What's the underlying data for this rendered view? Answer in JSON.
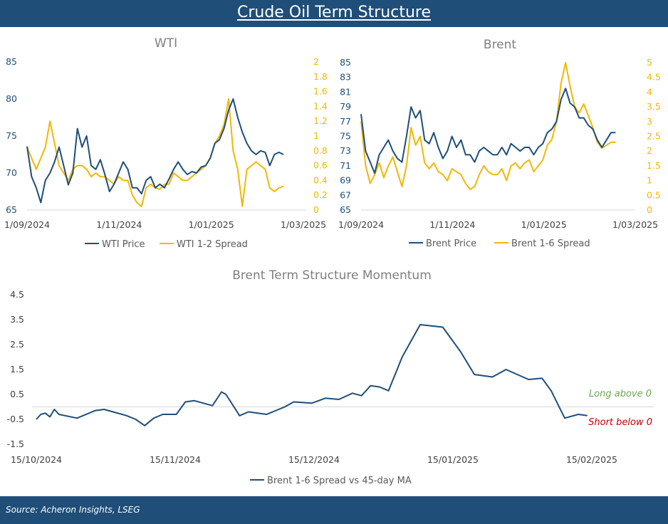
{
  "header": {
    "title": "Crude Oil Term Structure"
  },
  "footer": {
    "source": "Source: Acheron Insights, LSEG"
  },
  "colors": {
    "header_bg": "#1f4e79",
    "price": "#1f4e79",
    "spread": "#f2b705",
    "long": "#6aa84f",
    "short": "#c00000"
  },
  "chart_data": [
    {
      "type": "line",
      "title": "WTI",
      "x_range": [
        "2024-09-01",
        "2025-03-01"
      ],
      "x_ticks": [
        "1/09/2024",
        "1/11/2024",
        "1/01/2025",
        "1/03/2025"
      ],
      "y_left": {
        "range": [
          65,
          85
        ],
        "ticks": [
          "65",
          "70",
          "75",
          "80",
          "85"
        ]
      },
      "y_right": {
        "range": [
          0,
          2
        ],
        "ticks": [
          "0",
          "0.2",
          "0.4",
          "0.6",
          "0.8",
          "1",
          "1.2",
          "1.4",
          "1.6",
          "1.8",
          "2"
        ]
      },
      "series": [
        {
          "name": "WTI Price",
          "axis": "left",
          "x": [
            "2024-09-01",
            "2024-09-04",
            "2024-09-07",
            "2024-09-10",
            "2024-09-13",
            "2024-09-16",
            "2024-09-19",
            "2024-09-22",
            "2024-09-25",
            "2024-09-28",
            "2024-10-01",
            "2024-10-04",
            "2024-10-07",
            "2024-10-10",
            "2024-10-13",
            "2024-10-16",
            "2024-10-19",
            "2024-10-22",
            "2024-10-25",
            "2024-10-28",
            "2024-10-31",
            "2024-11-03",
            "2024-11-06",
            "2024-11-09",
            "2024-11-12",
            "2024-11-15",
            "2024-11-18",
            "2024-11-21",
            "2024-11-24",
            "2024-11-27",
            "2024-11-30",
            "2024-12-03",
            "2024-12-06",
            "2024-12-09",
            "2024-12-12",
            "2024-12-15",
            "2024-12-18",
            "2024-12-21",
            "2024-12-24",
            "2024-12-27",
            "2024-12-30",
            "2025-01-02",
            "2025-01-05",
            "2025-01-08",
            "2025-01-11",
            "2025-01-14",
            "2025-01-17",
            "2025-01-20",
            "2025-01-23",
            "2025-01-26",
            "2025-01-29",
            "2025-02-01",
            "2025-02-04",
            "2025-02-07",
            "2025-02-10",
            "2025-02-13",
            "2025-02-16"
          ],
          "values": [
            73.6,
            69.5,
            68.0,
            66.0,
            69.0,
            70.0,
            71.5,
            73.5,
            71.0,
            68.4,
            70.0,
            76.0,
            73.5,
            75.0,
            71.0,
            70.5,
            71.8,
            69.8,
            67.5,
            68.5,
            70.0,
            71.5,
            70.5,
            68.0,
            68.0,
            67.2,
            69.0,
            69.5,
            68.0,
            68.5,
            68.0,
            69.2,
            70.5,
            71.5,
            70.5,
            69.8,
            70.2,
            70.0,
            70.8,
            71.0,
            72.0,
            74.0,
            74.5,
            76.0,
            78.5,
            80.0,
            77.5,
            75.5,
            74.0,
            73.0,
            72.5,
            73.0,
            72.8,
            71.0,
            72.5,
            72.8,
            72.5
          ]
        },
        {
          "name": "WTI 1-2 Spread",
          "axis": "right",
          "x": [
            "2024-09-01",
            "2024-09-04",
            "2024-09-07",
            "2024-09-10",
            "2024-09-13",
            "2024-09-16",
            "2024-09-19",
            "2024-09-22",
            "2024-09-25",
            "2024-09-28",
            "2024-10-01",
            "2024-10-04",
            "2024-10-07",
            "2024-10-10",
            "2024-10-13",
            "2024-10-16",
            "2024-10-19",
            "2024-10-22",
            "2024-10-25",
            "2024-10-28",
            "2024-10-31",
            "2024-11-03",
            "2024-11-06",
            "2024-11-09",
            "2024-11-12",
            "2024-11-15",
            "2024-11-18",
            "2024-11-21",
            "2024-11-24",
            "2024-11-27",
            "2024-11-30",
            "2024-12-03",
            "2024-12-06",
            "2024-12-09",
            "2024-12-12",
            "2024-12-15",
            "2024-12-18",
            "2024-12-21",
            "2024-12-24",
            "2024-12-27",
            "2024-12-30",
            "2025-01-02",
            "2025-01-05",
            "2025-01-08",
            "2025-01-11",
            "2025-01-14",
            "2025-01-17",
            "2025-01-20",
            "2025-01-23",
            "2025-01-26",
            "2025-01-29",
            "2025-02-01",
            "2025-02-04",
            "2025-02-07",
            "2025-02-10",
            "2025-02-13",
            "2025-02-16"
          ],
          "values": [
            0.85,
            0.7,
            0.55,
            0.7,
            0.85,
            1.2,
            0.9,
            0.6,
            0.5,
            0.4,
            0.55,
            0.6,
            0.6,
            0.55,
            0.45,
            0.5,
            0.45,
            0.45,
            0.4,
            0.35,
            0.45,
            0.4,
            0.4,
            0.2,
            0.1,
            0.05,
            0.3,
            0.35,
            0.3,
            0.28,
            0.35,
            0.35,
            0.5,
            0.45,
            0.4,
            0.4,
            0.45,
            0.5,
            0.55,
            0.6,
            0.7,
            0.9,
            1.0,
            1.15,
            1.5,
            0.8,
            0.55,
            0.05,
            0.55,
            0.6,
            0.65,
            0.6,
            0.55,
            0.3,
            0.25,
            0.3,
            0.32
          ]
        }
      ]
    },
    {
      "type": "line",
      "title": "Brent",
      "x_range": [
        "2024-09-01",
        "2025-03-01"
      ],
      "x_ticks": [
        "1/09/2024",
        "1/11/2024",
        "1/01/2025",
        "1/03/2025"
      ],
      "y_left": {
        "range": [
          65,
          85
        ],
        "ticks": [
          "65",
          "67",
          "69",
          "71",
          "73",
          "75",
          "77",
          "79",
          "81",
          "83",
          "85"
        ]
      },
      "y_right": {
        "range": [
          0,
          5
        ],
        "ticks": [
          "0",
          "0.5",
          "1",
          "1.5",
          "2",
          "2.5",
          "3",
          "3.5",
          "4",
          "4.5",
          "5"
        ]
      },
      "series": [
        {
          "name": "Brent Price",
          "axis": "left",
          "x": [
            "2024-09-01",
            "2024-09-04",
            "2024-09-07",
            "2024-09-10",
            "2024-09-13",
            "2024-09-16",
            "2024-09-19",
            "2024-09-22",
            "2024-09-25",
            "2024-09-28",
            "2024-10-01",
            "2024-10-04",
            "2024-10-07",
            "2024-10-10",
            "2024-10-13",
            "2024-10-16",
            "2024-10-19",
            "2024-10-22",
            "2024-10-25",
            "2024-10-28",
            "2024-10-31",
            "2024-11-03",
            "2024-11-06",
            "2024-11-09",
            "2024-11-12",
            "2024-11-15",
            "2024-11-18",
            "2024-11-21",
            "2024-11-24",
            "2024-11-27",
            "2024-11-30",
            "2024-12-03",
            "2024-12-06",
            "2024-12-09",
            "2024-12-12",
            "2024-12-15",
            "2024-12-18",
            "2024-12-21",
            "2024-12-24",
            "2024-12-27",
            "2024-12-30",
            "2025-01-02",
            "2025-01-05",
            "2025-01-08",
            "2025-01-11",
            "2025-01-14",
            "2025-01-17",
            "2025-01-20",
            "2025-01-23",
            "2025-01-26",
            "2025-01-29",
            "2025-02-01",
            "2025-02-04",
            "2025-02-07",
            "2025-02-10",
            "2025-02-13",
            "2025-02-16"
          ],
          "values": [
            78.0,
            73.0,
            71.5,
            70.0,
            72.5,
            73.5,
            74.5,
            73.0,
            72.0,
            71.5,
            75.0,
            79.0,
            77.5,
            78.5,
            74.5,
            74.0,
            75.5,
            73.5,
            72.0,
            73.0,
            75.0,
            73.5,
            74.5,
            72.5,
            72.5,
            71.5,
            73.0,
            73.5,
            73.0,
            72.5,
            72.5,
            73.5,
            72.5,
            74.0,
            73.5,
            73.0,
            73.5,
            73.5,
            72.5,
            73.5,
            74.0,
            75.5,
            76.0,
            77.0,
            80.0,
            81.5,
            79.5,
            79.0,
            77.5,
            77.5,
            76.5,
            76.0,
            74.5,
            73.5,
            74.5,
            75.5,
            75.5
          ]
        },
        {
          "name": "Brent 1-6 Spread",
          "axis": "right",
          "x": [
            "2024-09-01",
            "2024-09-04",
            "2024-09-07",
            "2024-09-10",
            "2024-09-13",
            "2024-09-16",
            "2024-09-19",
            "2024-09-22",
            "2024-09-25",
            "2024-09-28",
            "2024-10-01",
            "2024-10-04",
            "2024-10-07",
            "2024-10-10",
            "2024-10-13",
            "2024-10-16",
            "2024-10-19",
            "2024-10-22",
            "2024-10-25",
            "2024-10-28",
            "2024-10-31",
            "2024-11-03",
            "2024-11-06",
            "2024-11-09",
            "2024-11-12",
            "2024-11-15",
            "2024-11-18",
            "2024-11-21",
            "2024-11-24",
            "2024-11-27",
            "2024-11-30",
            "2024-12-03",
            "2024-12-06",
            "2024-12-09",
            "2024-12-12",
            "2024-12-15",
            "2024-12-18",
            "2024-12-21",
            "2024-12-24",
            "2024-12-27",
            "2024-12-30",
            "2025-01-02",
            "2025-01-05",
            "2025-01-08",
            "2025-01-11",
            "2025-01-14",
            "2025-01-17",
            "2025-01-20",
            "2025-01-23",
            "2025-01-26",
            "2025-01-29",
            "2025-02-01",
            "2025-02-04",
            "2025-02-07",
            "2025-02-10",
            "2025-02-13",
            "2025-02-16"
          ],
          "values": [
            3.0,
            1.5,
            0.9,
            1.2,
            1.6,
            1.1,
            1.5,
            1.8,
            1.3,
            0.8,
            1.5,
            2.8,
            2.2,
            2.5,
            1.6,
            1.4,
            1.6,
            1.3,
            1.2,
            1.0,
            1.4,
            1.3,
            1.2,
            0.9,
            0.7,
            0.8,
            1.2,
            1.5,
            1.3,
            1.2,
            1.2,
            1.4,
            1.0,
            1.5,
            1.6,
            1.4,
            1.6,
            1.7,
            1.3,
            1.5,
            1.7,
            2.2,
            2.4,
            3.0,
            4.3,
            5.0,
            4.2,
            3.5,
            3.3,
            3.6,
            3.2,
            2.8,
            2.3,
            2.1,
            2.2,
            2.3,
            2.3
          ]
        }
      ]
    },
    {
      "type": "line",
      "title": "Brent Term Structure Momentum",
      "x_range": [
        "2024-10-15",
        "2025-02-15"
      ],
      "x_ticks": [
        "15/10/2024",
        "15/11/2024",
        "15/12/2024",
        "15/01/2025",
        "15/02/2025"
      ],
      "y_range": [
        -1.5,
        4.5
      ],
      "y_ticks": [
        "-1.5",
        "-0.5",
        "0.5",
        "1.5",
        "2.5",
        "3.5",
        "4.5"
      ],
      "annotations": {
        "long": "Long above 0",
        "short": "Short below 0"
      },
      "series": [
        {
          "name": "Brent 1-6 Spread vs 45-day MA",
          "x": [
            "2024-10-15",
            "2024-10-16",
            "2024-10-17",
            "2024-10-18",
            "2024-10-19",
            "2024-10-20",
            "2024-10-24",
            "2024-10-28",
            "2024-10-30",
            "2024-11-01",
            "2024-11-04",
            "2024-11-06",
            "2024-11-08",
            "2024-11-10",
            "2024-11-12",
            "2024-11-15",
            "2024-11-17",
            "2024-11-19",
            "2024-11-23",
            "2024-11-25",
            "2024-11-26",
            "2024-11-29",
            "2024-12-01",
            "2024-12-05",
            "2024-12-09",
            "2024-12-11",
            "2024-12-15",
            "2024-12-18",
            "2024-12-21",
            "2024-12-24",
            "2024-12-26",
            "2024-12-28",
            "2024-12-30",
            "2025-01-01",
            "2025-01-04",
            "2025-01-08",
            "2025-01-13",
            "2025-01-15",
            "2025-01-17",
            "2025-01-20",
            "2025-01-24",
            "2025-01-27",
            "2025-02-01",
            "2025-02-04",
            "2025-02-06",
            "2025-02-09",
            "2025-02-12",
            "2025-02-14"
          ],
          "values": [
            -0.5,
            -0.3,
            -0.25,
            -0.4,
            -0.1,
            -0.3,
            -0.45,
            -0.15,
            -0.1,
            -0.2,
            -0.35,
            -0.5,
            -0.75,
            -0.45,
            -0.3,
            -0.3,
            0.2,
            0.25,
            0.05,
            0.6,
            0.5,
            -0.35,
            -0.2,
            -0.3,
            0.0,
            0.2,
            0.15,
            0.35,
            0.3,
            0.55,
            0.45,
            0.85,
            0.8,
            0.65,
            2.0,
            3.3,
            3.2,
            2.7,
            2.2,
            1.3,
            1.2,
            1.5,
            1.1,
            1.15,
            0.65,
            -0.45,
            -0.3,
            -0.35
          ]
        }
      ]
    }
  ]
}
